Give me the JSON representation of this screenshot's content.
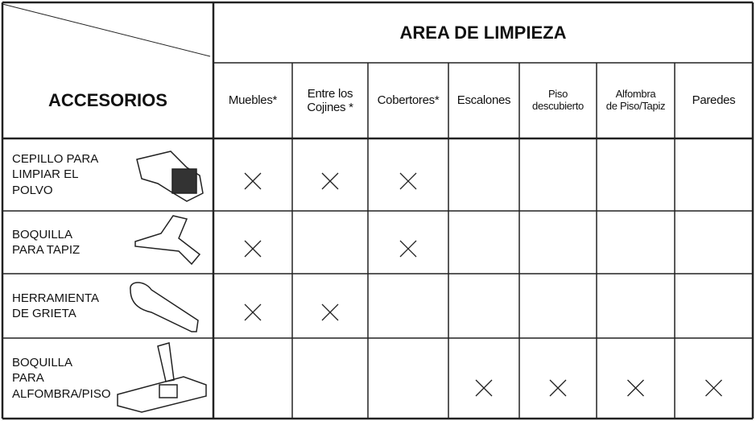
{
  "header": {
    "title": "AREA DE LIMPIEZA",
    "corner": "ACCESORIOS"
  },
  "columns": [
    "Muebles*",
    "Entre los\nCojines *",
    "Cobertores*",
    "Escalones",
    "Piso\ndescubierto",
    "Alfombra\nde Piso/Tapiz",
    "Paredes"
  ],
  "rows": [
    {
      "label": "CEPILLO PARA\nLIMPIAR EL\nPOLVO",
      "cells": [
        true,
        true,
        true,
        false,
        false,
        false,
        false
      ]
    },
    {
      "label": "BOQUILLA\nPARA TAPIZ",
      "cells": [
        true,
        false,
        true,
        false,
        false,
        false,
        false
      ]
    },
    {
      "label": "HERRAMIENTA\nDE GRIETA",
      "cells": [
        true,
        true,
        false,
        false,
        false,
        false,
        false
      ]
    },
    {
      "label": "BOQUILLA\nPARA\nALFOMBRA/PISO",
      "cells": [
        false,
        false,
        false,
        true,
        true,
        true,
        true
      ]
    }
  ]
}
